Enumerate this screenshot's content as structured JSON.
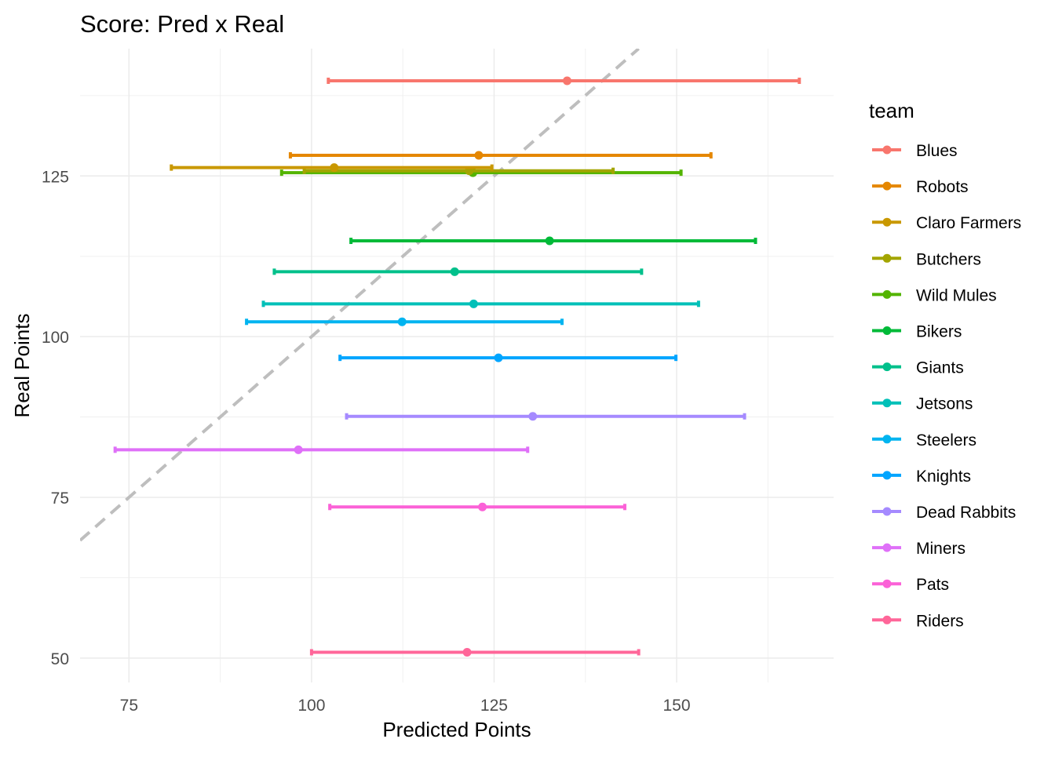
{
  "chart_data": {
    "type": "errorbar-scatter",
    "title": "Score: Pred x Real",
    "xlabel": "Predicted Points",
    "ylabel": "Real Points",
    "xlim": [
      68.3,
      171.5
    ],
    "ylim": [
      46.2,
      144.8
    ],
    "xticks": [
      75,
      100,
      125,
      150
    ],
    "yticks": [
      50,
      75,
      100,
      125
    ],
    "grid": true,
    "reference_line": {
      "slope": 1,
      "intercept": 0,
      "style": "dashed",
      "color": "#BEBEBE"
    },
    "legend": {
      "title": "team",
      "placement": "right"
    },
    "series": [
      {
        "name": "Blues",
        "color": "#F8766D",
        "real": 139.8,
        "pred": 135.0,
        "pred_min": 102.3,
        "pred_max": 166.8
      },
      {
        "name": "Robots",
        "color": "#E58700",
        "real": 128.2,
        "pred": 122.9,
        "pred_min": 97.1,
        "pred_max": 154.7
      },
      {
        "name": "Claro Farmers",
        "color": "#C99800",
        "real": 126.3,
        "pred": 103.1,
        "pred_min": 80.8,
        "pred_max": 124.7
      },
      {
        "name": "Butchers",
        "color": "#A3A500",
        "real": 125.8,
        "pred": 121.6,
        "pred_min": 99.0,
        "pred_max": 141.3
      },
      {
        "name": "Wild Mules",
        "color": "#53B400",
        "real": 125.5,
        "pred": 122.1,
        "pred_min": 95.9,
        "pred_max": 150.6
      },
      {
        "name": "Bikers",
        "color": "#00BA38",
        "real": 114.9,
        "pred": 132.6,
        "pred_min": 105.4,
        "pred_max": 160.8
      },
      {
        "name": "Giants",
        "color": "#00C08B",
        "real": 110.1,
        "pred": 119.6,
        "pred_min": 94.9,
        "pred_max": 145.2
      },
      {
        "name": "Jetsons",
        "color": "#00C0B8",
        "real": 105.1,
        "pred": 122.2,
        "pred_min": 93.4,
        "pred_max": 153.0
      },
      {
        "name": "Steelers",
        "color": "#00B4F0",
        "real": 102.3,
        "pred": 112.4,
        "pred_min": 91.1,
        "pred_max": 134.3
      },
      {
        "name": "Knights",
        "color": "#00A5FF",
        "real": 96.7,
        "pred": 125.6,
        "pred_min": 103.9,
        "pred_max": 149.9
      },
      {
        "name": "Dead Rabbits",
        "color": "#A58AFF",
        "real": 87.6,
        "pred": 130.3,
        "pred_min": 104.8,
        "pred_max": 159.3
      },
      {
        "name": "Miners",
        "color": "#DF70F8",
        "real": 82.4,
        "pred": 98.2,
        "pred_min": 73.1,
        "pred_max": 129.6
      },
      {
        "name": "Pats",
        "color": "#FB61D7",
        "real": 73.5,
        "pred": 123.4,
        "pred_min": 102.5,
        "pred_max": 142.9
      },
      {
        "name": "Riders",
        "color": "#FF6699",
        "real": 50.9,
        "pred": 121.3,
        "pred_min": 100.0,
        "pred_max": 144.8
      }
    ]
  }
}
